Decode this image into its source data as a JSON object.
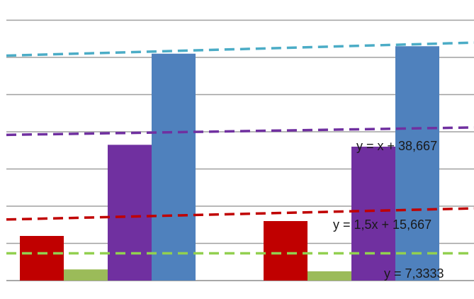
{
  "chart_data": {
    "type": "bar",
    "title": "",
    "xlabel": "",
    "ylabel": "",
    "ylim": [
      0,
      75
    ],
    "grid": true,
    "legend": "none",
    "categories": [
      "",
      ""
    ],
    "series": [
      {
        "color": "#c00000",
        "values": [
          12,
          16
        ]
      },
      {
        "color": "#9bbb59",
        "values": [
          3,
          2.5
        ]
      },
      {
        "color": "#7030a0",
        "values": [
          36.5,
          36
        ]
      },
      {
        "color": "#4f81bd",
        "values": [
          61,
          63
        ]
      }
    ],
    "trendlines": [
      {
        "color": "#c00000",
        "slope": 1.5,
        "intercept": 15.667,
        "label": "y = 1,5x + 15,667"
      },
      {
        "color": "#92d050",
        "slope": 0,
        "intercept": 7.3333,
        "label": "y = 7,3333"
      },
      {
        "color": "#7030a0",
        "slope": 1,
        "intercept": 38.667,
        "label": "y = x + 38,667"
      },
      {
        "color": "#4bacc6",
        "slope": 1.75,
        "intercept": 59.6,
        "label": ""
      }
    ]
  }
}
